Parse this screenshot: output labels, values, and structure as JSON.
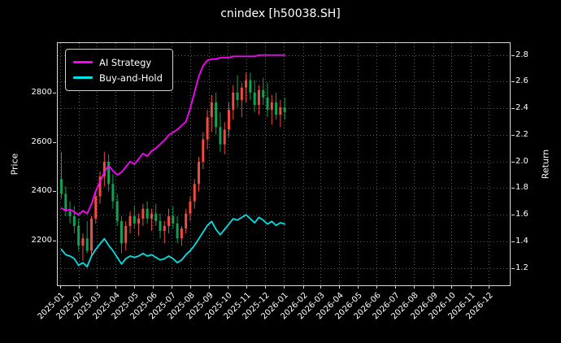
{
  "colors": {
    "background": "#000000",
    "text": "#ffffff",
    "grid": "rgba(255,255,255,0.45)",
    "spine": "#d9d9d9",
    "ai_line": "#ff00ff",
    "bh_line": "#00e1e6",
    "candle_up": "#ef4b3e",
    "candle_down": "#12a152"
  },
  "chart_data": {
    "type": "candlestick",
    "title": "cnindex [h50038.SH]",
    "xlabel": "",
    "ylabel_left": "Price",
    "ylabel_right": "Return",
    "grid": true,
    "legend_position": "upper-left",
    "x_range": [
      "2024-12-28",
      "2027-01-04"
    ],
    "x_tick_labels": [
      "2025-01",
      "2025-02",
      "2025-03",
      "2025-04",
      "2025-05",
      "2025-06",
      "2025-07",
      "2025-08",
      "2025-09",
      "2025-10",
      "2025-11",
      "2025-12",
      "2026-01",
      "2026-02",
      "2026-03",
      "2026-04",
      "2026-05",
      "2026-06",
      "2026-07",
      "2026-08",
      "2026-09",
      "2026-10",
      "2026-11",
      "2026-12"
    ],
    "price_axis": {
      "ticks": [
        2200,
        2400,
        2600,
        2800
      ],
      "range": [
        2020,
        3000
      ]
    },
    "return_axis": {
      "ticks": [
        1.2,
        1.4,
        1.6,
        1.8,
        2.0,
        2.2,
        2.4,
        2.6,
        2.8
      ],
      "range": [
        1.07,
        2.89
      ]
    },
    "candle_colors": {
      "up": "#ef4b3e",
      "down": "#12a152"
    },
    "dates": [
      "2025-01-03",
      "2025-01-10",
      "2025-01-17",
      "2025-01-24",
      "2025-01-31",
      "2025-02-07",
      "2025-02-14",
      "2025-02-21",
      "2025-02-28",
      "2025-03-07",
      "2025-03-14",
      "2025-03-21",
      "2025-03-28",
      "2025-04-04",
      "2025-04-11",
      "2025-04-18",
      "2025-04-25",
      "2025-05-02",
      "2025-05-09",
      "2025-05-16",
      "2025-05-23",
      "2025-05-30",
      "2025-06-06",
      "2025-06-13",
      "2025-06-20",
      "2025-06-27",
      "2025-07-04",
      "2025-07-11",
      "2025-07-18",
      "2025-07-25",
      "2025-08-01",
      "2025-08-08",
      "2025-08-15",
      "2025-08-22",
      "2025-08-29",
      "2025-09-05",
      "2025-09-12",
      "2025-09-19",
      "2025-09-26",
      "2025-10-03",
      "2025-10-10",
      "2025-10-17",
      "2025-10-24",
      "2025-10-31",
      "2025-11-07",
      "2025-11-14",
      "2025-11-21",
      "2025-11-28",
      "2025-12-05",
      "2025-12-12",
      "2025-12-19",
      "2025-12-26",
      "2026-01-02"
    ],
    "ohlc": [
      [
        2450,
        2560,
        2370,
        2390
      ],
      [
        2390,
        2420,
        2300,
        2320
      ],
      [
        2320,
        2360,
        2270,
        2300
      ],
      [
        2300,
        2340,
        2230,
        2260
      ],
      [
        2260,
        2290,
        2160,
        2180
      ],
      [
        2180,
        2230,
        2120,
        2210
      ],
      [
        2210,
        2280,
        2150,
        2160
      ],
      [
        2160,
        2300,
        2140,
        2290
      ],
      [
        2290,
        2400,
        2270,
        2380
      ],
      [
        2380,
        2480,
        2350,
        2460
      ],
      [
        2460,
        2560,
        2420,
        2520
      ],
      [
        2520,
        2550,
        2400,
        2430
      ],
      [
        2430,
        2470,
        2330,
        2360
      ],
      [
        2360,
        2390,
        2260,
        2280
      ],
      [
        2280,
        2300,
        2150,
        2190
      ],
      [
        2190,
        2280,
        2160,
        2260
      ],
      [
        2260,
        2320,
        2230,
        2300
      ],
      [
        2300,
        2340,
        2250,
        2270
      ],
      [
        2270,
        2310,
        2220,
        2290
      ],
      [
        2290,
        2350,
        2260,
        2330
      ],
      [
        2330,
        2360,
        2270,
        2290
      ],
      [
        2290,
        2330,
        2240,
        2310
      ],
      [
        2310,
        2350,
        2260,
        2280
      ],
      [
        2280,
        2310,
        2210,
        2240
      ],
      [
        2240,
        2280,
        2190,
        2260
      ],
      [
        2260,
        2330,
        2230,
        2300
      ],
      [
        2300,
        2340,
        2250,
        2270
      ],
      [
        2270,
        2300,
        2190,
        2210
      ],
      [
        2210,
        2260,
        2180,
        2250
      ],
      [
        2250,
        2330,
        2230,
        2310
      ],
      [
        2310,
        2380,
        2280,
        2360
      ],
      [
        2360,
        2450,
        2330,
        2430
      ],
      [
        2430,
        2540,
        2400,
        2520
      ],
      [
        2520,
        2640,
        2490,
        2610
      ],
      [
        2610,
        2730,
        2570,
        2700
      ],
      [
        2700,
        2790,
        2640,
        2760
      ],
      [
        2760,
        2800,
        2630,
        2660
      ],
      [
        2660,
        2720,
        2560,
        2590
      ],
      [
        2590,
        2680,
        2550,
        2650
      ],
      [
        2650,
        2760,
        2620,
        2730
      ],
      [
        2730,
        2830,
        2690,
        2800
      ],
      [
        2800,
        2870,
        2740,
        2770
      ],
      [
        2770,
        2840,
        2700,
        2820
      ],
      [
        2820,
        2880,
        2760,
        2850
      ],
      [
        2850,
        2880,
        2770,
        2800
      ],
      [
        2800,
        2850,
        2720,
        2750
      ],
      [
        2750,
        2830,
        2710,
        2810
      ],
      [
        2810,
        2860,
        2750,
        2780
      ],
      [
        2780,
        2840,
        2700,
        2730
      ],
      [
        2730,
        2790,
        2670,
        2760
      ],
      [
        2760,
        2800,
        2690,
        2710
      ],
      [
        2710,
        2770,
        2660,
        2740
      ],
      [
        2740,
        2780,
        2690,
        2720
      ]
    ],
    "series": [
      {
        "name": "AI Strategy",
        "axis": "return",
        "color": "#ff00ff",
        "values": [
          1.65,
          1.63,
          1.64,
          1.62,
          1.6,
          1.63,
          1.61,
          1.68,
          1.78,
          1.85,
          1.92,
          1.97,
          1.93,
          1.9,
          1.92,
          1.96,
          2.0,
          1.98,
          2.02,
          2.06,
          2.04,
          2.08,
          2.1,
          2.13,
          2.16,
          2.2,
          2.22,
          2.24,
          2.27,
          2.3,
          2.4,
          2.52,
          2.64,
          2.72,
          2.76,
          2.77,
          2.77,
          2.78,
          2.78,
          2.78,
          2.79,
          2.79,
          2.79,
          2.79,
          2.79,
          2.79,
          2.8,
          2.8,
          2.8,
          2.8,
          2.8,
          2.8,
          2.8
        ]
      },
      {
        "name": "Buy-and-Hold",
        "axis": "return",
        "color": "#00e1e6",
        "values": [
          1.34,
          1.3,
          1.29,
          1.27,
          1.22,
          1.24,
          1.21,
          1.29,
          1.34,
          1.38,
          1.42,
          1.37,
          1.33,
          1.28,
          1.23,
          1.27,
          1.29,
          1.28,
          1.29,
          1.31,
          1.29,
          1.3,
          1.28,
          1.26,
          1.27,
          1.29,
          1.27,
          1.24,
          1.26,
          1.3,
          1.33,
          1.37,
          1.42,
          1.47,
          1.52,
          1.55,
          1.49,
          1.45,
          1.49,
          1.53,
          1.57,
          1.56,
          1.58,
          1.6,
          1.57,
          1.54,
          1.58,
          1.56,
          1.53,
          1.55,
          1.52,
          1.54,
          1.53
        ]
      }
    ]
  }
}
